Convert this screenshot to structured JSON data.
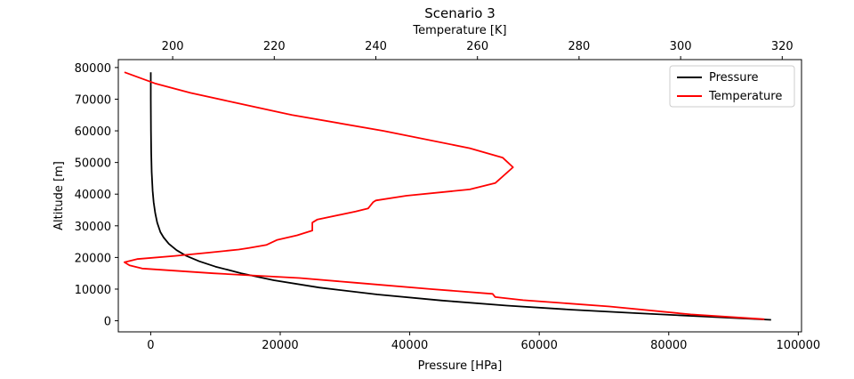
{
  "chart_data": {
    "type": "line",
    "title": "Scenario 3",
    "xlabel": "Pressure [HPa]",
    "ylabel": "Altitude [m]",
    "x2label": "Temperature [K]",
    "xlim": [
      -5000,
      100500
    ],
    "x2lim": [
      189.3,
      323.8
    ],
    "ylim": [
      -3500,
      82500
    ],
    "xticks": [
      0,
      20000,
      40000,
      60000,
      80000,
      100000
    ],
    "x2ticks": [
      200,
      220,
      240,
      260,
      280,
      300,
      320
    ],
    "yticks": [
      0,
      10000,
      20000,
      30000,
      40000,
      50000,
      60000,
      70000,
      80000
    ],
    "grid": false,
    "legend_position": "top-right",
    "series": [
      {
        "name": "Pressure",
        "color": "#000000",
        "axis": "bottom",
        "x": [
          95800,
          85000,
          75000,
          65000,
          55000,
          45000,
          35000,
          26000,
          19000,
          14000,
          10000,
          7500,
          5500,
          4000,
          2800,
          2000,
          1500,
          1000,
          700,
          450,
          300,
          150,
          80,
          40,
          20,
          12
        ],
        "y": [
          300,
          1400,
          2400,
          3500,
          4800,
          6400,
          8300,
          10500,
          12800,
          15000,
          17100,
          18800,
          20500,
          22300,
          24300,
          26300,
          28000,
          31000,
          34000,
          37500,
          41000,
          47000,
          53000,
          60000,
          70000,
          78500
        ]
      },
      {
        "name": "Temperature",
        "color": "#ff0000",
        "axis": "top",
        "x": [
          190.5,
          196.5,
          203.5,
          212,
          223.5,
          241.5,
          258.5,
          265,
          267,
          263.5,
          258.5,
          246,
          240,
          239.5,
          238.5,
          236,
          228.5,
          227.5,
          227.5,
          224.5,
          220.5,
          218.5,
          215,
          213,
          207,
          200.5,
          193,
          190.5,
          191.5,
          194,
          208,
          225,
          236,
          251,
          263,
          263.5,
          269,
          286,
          302,
          316.5
        ],
        "y": [
          78500,
          75000,
          72000,
          69000,
          65000,
          60000,
          54500,
          51500,
          48500,
          43500,
          41500,
          39500,
          38000,
          37500,
          35500,
          34500,
          32000,
          31000,
          28500,
          27000,
          25500,
          24000,
          23000,
          22500,
          21500,
          20500,
          19500,
          18500,
          17500,
          16500,
          15000,
          13500,
          12000,
          10000,
          8500,
          7500,
          6500,
          4500,
          2000,
          500
        ]
      }
    ]
  }
}
